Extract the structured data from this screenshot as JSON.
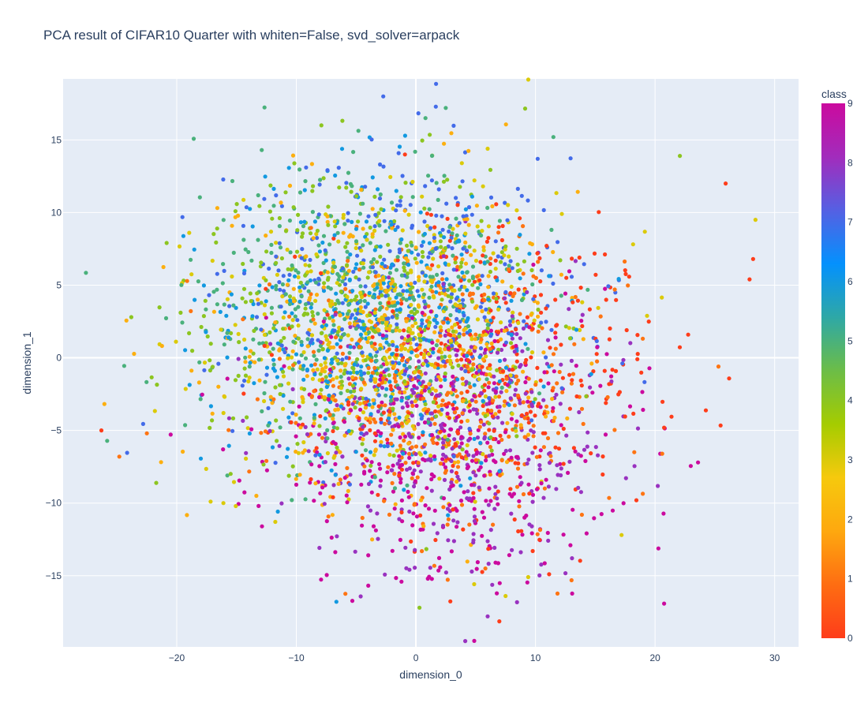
{
  "chart_data": {
    "type": "scatter",
    "title": "PCA result of CIFAR10 Quarter with whiten=False, svd_solver=arpack",
    "xlabel": "dimension_0",
    "ylabel": "dimension_1",
    "xlim": [
      -29.5,
      32.0
    ],
    "ylim": [
      -19.9,
      19.2
    ],
    "x_ticks": [
      -20,
      -10,
      0,
      10,
      20,
      30
    ],
    "x_tick_labels": [
      "−20",
      "−10",
      "0",
      "10",
      "20",
      "30"
    ],
    "y_ticks": [
      -15,
      -10,
      -5,
      0,
      5,
      10,
      15
    ],
    "y_tick_labels": [
      "−15",
      "−10",
      "−5",
      "0",
      "5",
      "10",
      "15"
    ],
    "grid": true,
    "plot_background": "#e5ecf6",
    "colorbar": {
      "title": "class",
      "range": [
        0,
        9
      ],
      "ticks": [
        0,
        1,
        2,
        3,
        4,
        5,
        6,
        7,
        8,
        9
      ],
      "tick_labels": [
        "0",
        "1",
        "2",
        "3",
        "4",
        "5",
        "6",
        "7",
        "8",
        "9"
      ],
      "colorscale": [
        "#fe3d1a",
        "#fe6d12",
        "#fea80f",
        "#f6c90d",
        "#a5cc00",
        "#6cbd47",
        "#2ea8a6",
        "#0491fd",
        "#5560e3",
        "#a22cbc",
        "#cb0a9e"
      ]
    },
    "cluster_centers": [
      {
        "class": 0,
        "x": 5.5,
        "y": -1.0
      },
      {
        "class": 1,
        "x": 2.5,
        "y": -3.0
      },
      {
        "class": 2,
        "x": -2.0,
        "y": 1.5
      },
      {
        "class": 3,
        "x": -2.5,
        "y": 2.0
      },
      {
        "class": 4,
        "x": -4.0,
        "y": 3.0
      },
      {
        "class": 5,
        "x": -4.5,
        "y": 3.5
      },
      {
        "class": 6,
        "x": -3.0,
        "y": 2.5
      },
      {
        "class": 7,
        "x": -1.0,
        "y": 4.0
      },
      {
        "class": 8,
        "x": 3.5,
        "y": -5.0
      },
      {
        "class": 9,
        "x": 2.0,
        "y": -6.5
      }
    ],
    "outlier_points": [
      {
        "x": 2.5,
        "y": 17.2,
        "class": 5
      },
      {
        "x": -7.9,
        "y": 16.0,
        "class": 4
      },
      {
        "x": 11.5,
        "y": 15.2,
        "class": 5
      },
      {
        "x": 0.8,
        "y": 16.5,
        "class": 5
      },
      {
        "x": 25.9,
        "y": 12.0,
        "class": 0
      },
      {
        "x": 28.4,
        "y": 9.5,
        "class": 3
      },
      {
        "x": 27.9,
        "y": 5.4,
        "class": 0
      },
      {
        "x": -26.3,
        "y": -5.0,
        "class": 0
      },
      {
        "x": -24.8,
        "y": -6.8,
        "class": 1
      },
      {
        "x": -23.8,
        "y": 2.8,
        "class": 4
      },
      {
        "x": 6.0,
        "y": -17.8,
        "class": 8
      },
      {
        "x": 0.3,
        "y": -17.2,
        "class": 4
      },
      {
        "x": 7.5,
        "y": -16.4,
        "class": 3
      },
      {
        "x": 1.0,
        "y": -15.2,
        "class": 9
      },
      {
        "x": 17.2,
        "y": -12.2,
        "class": 3
      },
      {
        "x": -16.1,
        "y": -10.0,
        "class": 3
      },
      {
        "x": 25.3,
        "y": -0.6,
        "class": 1
      },
      {
        "x": 20.6,
        "y": -6.6,
        "class": 1
      },
      {
        "x": 28.2,
        "y": 6.8,
        "class": 0
      },
      {
        "x": -22.5,
        "y": -5.2,
        "class": 1
      }
    ]
  }
}
